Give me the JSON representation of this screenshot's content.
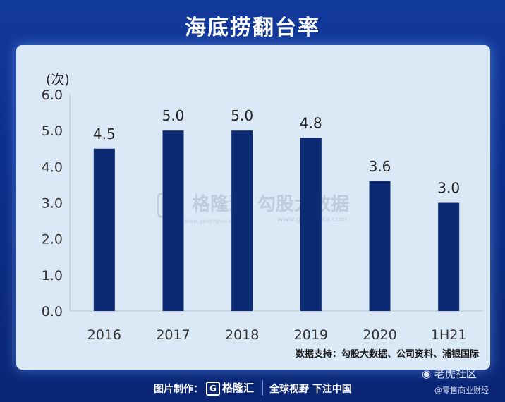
{
  "header": {
    "title": "海底捞翻台率"
  },
  "chart_data": {
    "type": "bar",
    "title": "海底捞翻台率",
    "ylabel": "(次)",
    "categories": [
      "2016",
      "2017",
      "2018",
      "2019",
      "2020",
      "1H21"
    ],
    "values": [
      4.5,
      5.0,
      5.0,
      4.8,
      3.6,
      3.0
    ],
    "value_labels": [
      "4.5",
      "5.0",
      "5.0",
      "4.8",
      "3.6",
      "3.0"
    ],
    "ylim": [
      0,
      6
    ],
    "yticks": [
      "0.0",
      "1.0",
      "2.0",
      "3.0",
      "4.0",
      "5.0",
      "6.0"
    ],
    "bar_color": "#0c2a73",
    "grid": false
  },
  "source": "数据支持：勾股大数据、公司资料、浦银国际",
  "watermarks": {
    "gelonghui": "格隆汇",
    "gelonghui_url": "www.gelonghui.com",
    "gogudata": "勾股大数据",
    "gogudata_url": "www.gogudata.com"
  },
  "footer": {
    "made_by": "图片制作：",
    "logo_text": "格隆汇",
    "slogan": "全球视野 下注中国",
    "community": "老虎社区",
    "handle": "@零售商业财经"
  },
  "colors": {
    "background": "#0d2f8c",
    "card": "#dbe9f7",
    "bar": "#0c2a73"
  }
}
